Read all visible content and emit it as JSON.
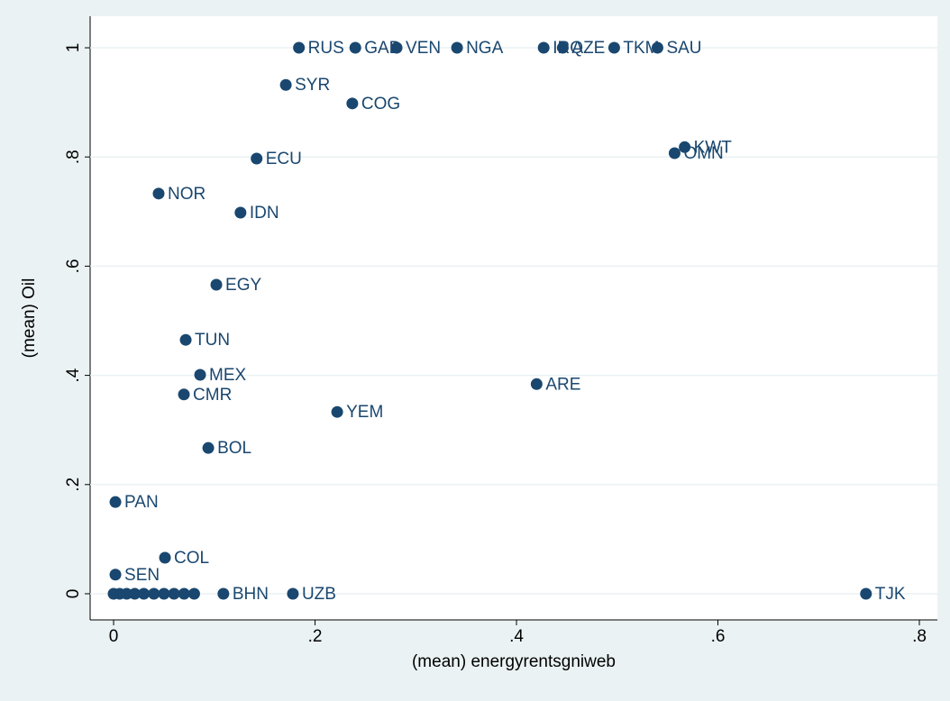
{
  "chart_data": {
    "type": "scatter",
    "color": "#1a476f",
    "grid": true,
    "x_label": "(mean) energyrentsgniweb",
    "y_label": "(mean) Oil",
    "xlim": [
      -0.0233,
      0.8179
    ],
    "ylim": [
      -0.0479,
      1.0578
    ],
    "xticks": [
      {
        "value": 0,
        "label": "0"
      },
      {
        "value": 0.2,
        "label": ".2"
      },
      {
        "value": 0.4,
        "label": ".4"
      },
      {
        "value": 0.6,
        "label": ".6"
      },
      {
        "value": 0.8,
        "label": ".8"
      }
    ],
    "yticks": [
      {
        "value": 0,
        "label": "0"
      },
      {
        "value": 0.2,
        "label": ".2"
      },
      {
        "value": 0.4,
        "label": ".4"
      },
      {
        "value": 0.6,
        "label": ".6"
      },
      {
        "value": 0.8,
        "label": ".8"
      },
      {
        "value": 1,
        "label": "1"
      }
    ],
    "x": [
      0.184,
      0.24,
      0.281,
      0.341,
      0.427,
      0.446,
      0.497,
      0.54,
      0.171,
      0.237,
      0.567,
      0.557,
      0.142,
      0.0447,
      0.126,
      0.102,
      0.0716,
      0.0859,
      0.0698,
      0.42,
      0.222,
      0.094,
      0.0018,
      0.051,
      0.0018,
      0.109,
      0.178,
      0.747,
      0,
      0.006,
      0.013,
      0.021,
      0.03,
      0.04,
      0.05,
      0.06,
      0.07,
      0.08
    ],
    "values": [
      1,
      1,
      1,
      1,
      1,
      1,
      1,
      1,
      0.932,
      0.898,
      0.818,
      0.807,
      0.797,
      0.733,
      0.698,
      0.566,
      0.465,
      0.401,
      0.365,
      0.384,
      0.333,
      0.267,
      0.168,
      0.066,
      0.035,
      0,
      0,
      0,
      0,
      0,
      0,
      0,
      0,
      0,
      0,
      0,
      0,
      0
    ],
    "labels": [
      "RUS",
      "GAB",
      "VEN",
      "NGA",
      "IRQ",
      "AZE",
      "TKM",
      "SAU",
      "SYR",
      "COG",
      "KWT",
      "OMN",
      "ECU",
      "NOR",
      "IDN",
      "EGY",
      "TUN",
      "MEX",
      "CMR",
      "ARE",
      "YEM",
      "BOL",
      "PAN",
      "COL",
      "SEN",
      "BHN",
      "UZB",
      "TJK",
      null,
      null,
      null,
      null,
      null,
      null,
      null,
      null,
      null,
      null
    ]
  }
}
